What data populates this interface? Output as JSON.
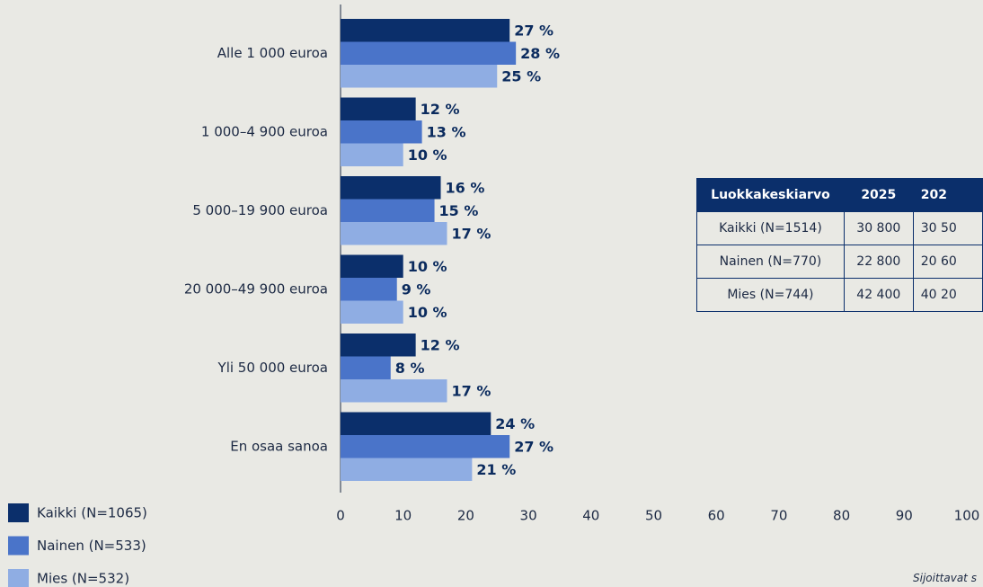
{
  "chart_data": {
    "type": "bar",
    "orientation": "horizontal",
    "categories": [
      "Alle 1 000 euroa",
      "1 000–4 900 euroa",
      "5 000–19 900 euroa",
      "20 000–49 900 euroa",
      "Yli 50 000 euroa",
      "En osaa sanoa"
    ],
    "series": [
      {
        "name": "Kaikki (N=1065)",
        "color": "#0b2f6b",
        "values": [
          27,
          12,
          16,
          10,
          12,
          24
        ],
        "value_labels": [
          "27 %",
          "12 %",
          "16 %",
          "10 %",
          "12 %",
          "24 %"
        ]
      },
      {
        "name": "Nainen (N=533)",
        "color": "#4a74c9",
        "values": [
          28,
          13,
          15,
          9,
          8,
          27
        ],
        "value_labels": [
          "28 %",
          "13 %",
          "15 %",
          "9 %",
          "8 %",
          "27 %"
        ]
      },
      {
        "name": "Mies (N=532)",
        "color": "#8fade3",
        "values": [
          25,
          10,
          17,
          10,
          17,
          21
        ],
        "value_labels": [
          "25 %",
          "10 %",
          "17 %",
          "10 %",
          "17 %",
          "21 %"
        ]
      }
    ],
    "xlim": [
      0,
      100
    ],
    "xticks": [
      0,
      10,
      20,
      30,
      40,
      50,
      60,
      70,
      80,
      90,
      100
    ],
    "grid": false,
    "legend": "bottom-left"
  },
  "table": {
    "header": [
      "Luokkakeskiarvo",
      "2025",
      "202"
    ],
    "rows": [
      [
        "Kaikki (N=1514)",
        "30 800",
        "30 50"
      ],
      [
        "Nainen (N=770)",
        "22 800",
        "20 60"
      ],
      [
        "Mies (N=744)",
        "42 400",
        "40 20"
      ]
    ]
  },
  "footnote": "Sijoittavat s"
}
